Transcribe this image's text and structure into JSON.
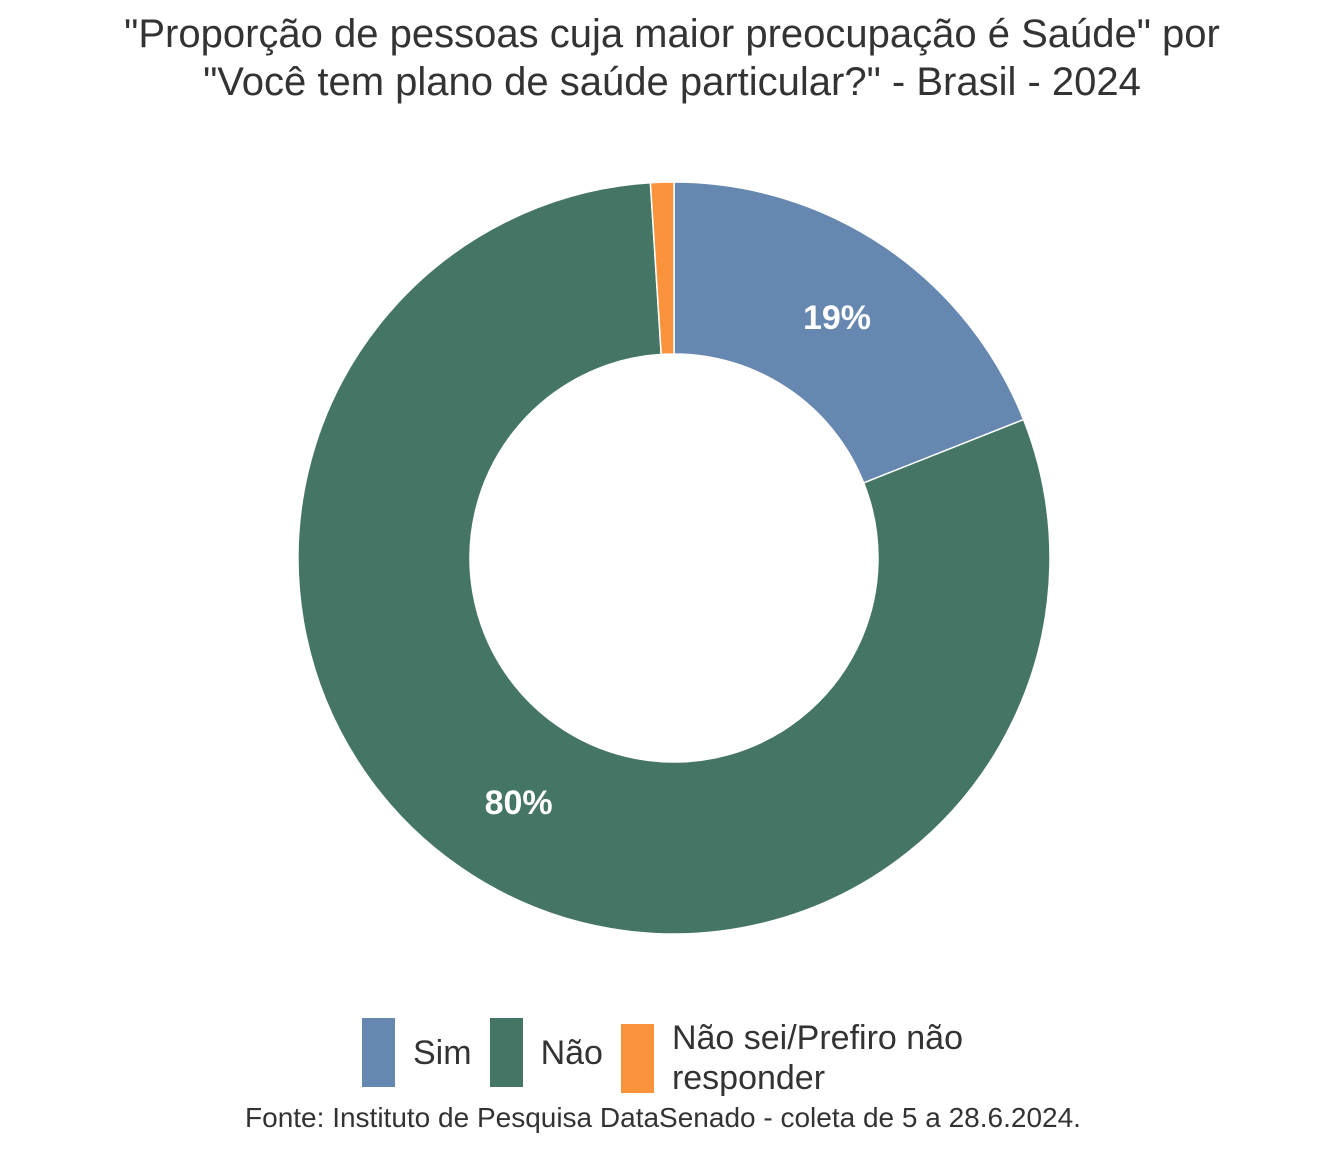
{
  "title": {
    "line1": "\"Proporção de pessoas cuja maior preocupação é Saúde\" por",
    "line2": "\"Você tem plano de saúde particular?\" - Brasil - 2024"
  },
  "source": "Fonte: Instituto de Pesquisa DataSenado - coleta de 5 a 28.6.2024.",
  "chart_data": {
    "type": "pie",
    "variant": "donut",
    "title": "\"Proporção de pessoas cuja maior preocupação é Saúde\" por \"Você tem plano de saúde particular?\" - Brasil - 2024",
    "categories": [
      "Sim",
      "Não",
      "Não sei/Prefiro não responder"
    ],
    "values": [
      19,
      80,
      1
    ],
    "unit": "%",
    "data_labels": [
      "19%",
      "80%",
      ""
    ],
    "colors": [
      "#6688B0",
      "#457564",
      "#FB923C"
    ],
    "legend_position": "bottom",
    "start_angle": "top, clockwise"
  },
  "legend": {
    "items": [
      {
        "label": "Sim",
        "color": "#6688B0"
      },
      {
        "label": "Não",
        "color": "#457564"
      },
      {
        "label": "Não sei/Prefiro não responder",
        "color": "#FB923C"
      }
    ]
  }
}
